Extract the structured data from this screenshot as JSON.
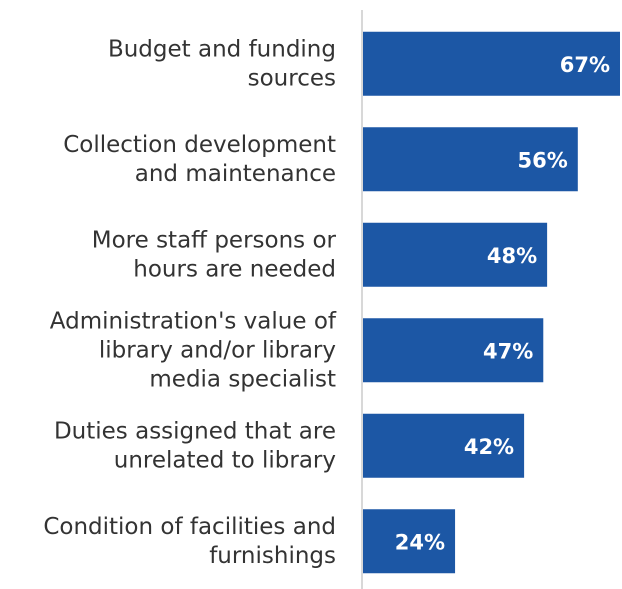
{
  "chart_data": {
    "type": "hbar",
    "categories": [
      [
        "Budget and funding",
        "sources"
      ],
      [
        "Collection development",
        "and maintenance"
      ],
      [
        "More staff persons or",
        "hours are needed"
      ],
      [
        "Administration's value of",
        "library and/or library",
        "media specialist"
      ],
      [
        "Duties assigned that are",
        "unrelated to library"
      ],
      [
        "Condition of facilities and",
        "furnishings"
      ]
    ],
    "values": [
      67,
      56,
      48,
      47,
      42,
      24
    ],
    "value_labels": [
      "67%",
      "56%",
      "48%",
      "47%",
      "42%",
      "24%"
    ],
    "color": "#1c57a5"
  }
}
